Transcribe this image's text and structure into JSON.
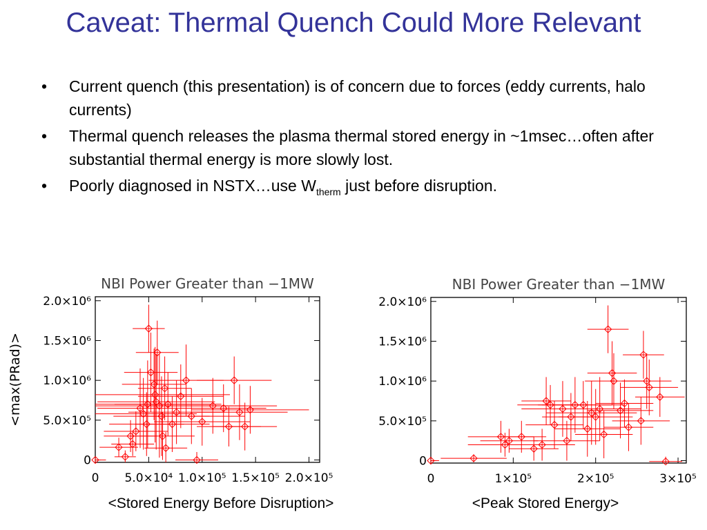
{
  "slide": {
    "title": "Caveat: Thermal Quench Could More Relevant",
    "bullets": [
      {
        "marker": "•",
        "text": "Current quench (this presentation) is of concern due to forces (eddy currents, halo currents)"
      },
      {
        "marker": "•",
        "text": "Thermal quench releases the plasma thermal stored energy in ~1msec…often after substantial thermal energy is more slowly lost."
      },
      {
        "marker": "•",
        "pre": "Poorly diagnosed in NSTX…use W",
        "sub": "therm",
        "post": " just before disruption."
      }
    ]
  },
  "colors": {
    "title": "#333399",
    "series": "#ff0000",
    "axis": "#000000"
  },
  "chart_data": [
    {
      "type": "scatter",
      "title": "NBI Power Greater than −1MW",
      "ylabel": "<max(PRad)>",
      "xlabel": "<Stored Energy Before Disruption>",
      "xlim": [
        0,
        210000
      ],
      "ylim": [
        -30000,
        2050000
      ],
      "xticks": [
        0,
        50000,
        100000,
        150000,
        200000
      ],
      "xtick_labels": [
        "0",
        "5.0×10⁴",
        "1.0×10⁵",
        "1.5×10⁵",
        "2.0×10⁵"
      ],
      "yticks": [
        0,
        500000,
        1000000,
        1500000,
        2000000
      ],
      "ytick_labels": [
        "0",
        "5.0×10⁵",
        "1.0×10⁶",
        "1.5×10⁶",
        "2.0×10⁶"
      ],
      "marker": "diamond",
      "points": [
        {
          "x": 0,
          "y": 0,
          "xerr": 10000,
          "yerr": 30000
        },
        {
          "x": 22000,
          "y": 160000,
          "xerr": 18000,
          "yerr": 120000
        },
        {
          "x": 28000,
          "y": 40000,
          "xerr": 10000,
          "yerr": 80000
        },
        {
          "x": 33000,
          "y": 300000,
          "xerr": 25000,
          "yerr": 200000
        },
        {
          "x": 35000,
          "y": 200000,
          "xerr": 20000,
          "yerr": 150000
        },
        {
          "x": 38000,
          "y": 360000,
          "xerr": 30000,
          "yerr": 250000
        },
        {
          "x": 42000,
          "y": 650000,
          "xerr": 40000,
          "yerr": 500000
        },
        {
          "x": 45000,
          "y": 580000,
          "xerr": 50000,
          "yerr": 450000
        },
        {
          "x": 48000,
          "y": 450000,
          "xerr": 35000,
          "yerr": 400000
        },
        {
          "x": 49000,
          "y": 700000,
          "xerr": 60000,
          "yerr": 550000
        },
        {
          "x": 50000,
          "y": 1650000,
          "xerr": 15000,
          "yerr": 300000
        },
        {
          "x": 52000,
          "y": 1100000,
          "xerr": 25000,
          "yerr": 500000
        },
        {
          "x": 55000,
          "y": 950000,
          "xerr": 30000,
          "yerr": 450000
        },
        {
          "x": 56000,
          "y": 820000,
          "xerr": 70000,
          "yerr": 600000
        },
        {
          "x": 57000,
          "y": 730000,
          "xerr": 55000,
          "yerr": 600000
        },
        {
          "x": 58000,
          "y": 1350000,
          "xerr": 20000,
          "yerr": 400000
        },
        {
          "x": 60000,
          "y": 680000,
          "xerr": 80000,
          "yerr": 650000
        },
        {
          "x": 62000,
          "y": 550000,
          "xerr": 45000,
          "yerr": 500000
        },
        {
          "x": 63000,
          "y": 300000,
          "xerr": 30000,
          "yerr": 300000
        },
        {
          "x": 65000,
          "y": 900000,
          "xerr": 25000,
          "yerr": 400000
        },
        {
          "x": 66000,
          "y": 150000,
          "xerr": 20000,
          "yerr": 200000
        },
        {
          "x": 68000,
          "y": 700000,
          "xerr": 50000,
          "yerr": 400000
        },
        {
          "x": 72000,
          "y": 450000,
          "xerr": 35000,
          "yerr": 350000
        },
        {
          "x": 76000,
          "y": 600000,
          "xerr": 45000,
          "yerr": 400000
        },
        {
          "x": 80000,
          "y": 800000,
          "xerr": 40000,
          "yerr": 400000
        },
        {
          "x": 85000,
          "y": 1000000,
          "xerr": 35000,
          "yerr": 450000
        },
        {
          "x": 90000,
          "y": 550000,
          "xerr": 50000,
          "yerr": 350000
        },
        {
          "x": 95000,
          "y": 0,
          "xerr": 20000,
          "yerr": 100000
        },
        {
          "x": 100000,
          "y": 480000,
          "xerr": 45000,
          "yerr": 300000
        },
        {
          "x": 110000,
          "y": 680000,
          "xerr": 60000,
          "yerr": 350000
        },
        {
          "x": 120000,
          "y": 650000,
          "xerr": 40000,
          "yerr": 300000
        },
        {
          "x": 125000,
          "y": 420000,
          "xerr": 30000,
          "yerr": 250000
        },
        {
          "x": 130000,
          "y": 1000000,
          "xerr": 35000,
          "yerr": 300000
        },
        {
          "x": 135000,
          "y": 600000,
          "xerr": 45000,
          "yerr": 350000
        },
        {
          "x": 140000,
          "y": 420000,
          "xerr": 30000,
          "yerr": 300000
        },
        {
          "x": 145000,
          "y": 630000,
          "xerr": 55000,
          "yerr": 300000
        }
      ]
    },
    {
      "type": "scatter",
      "title": "NBI Power Greater than −1MW",
      "ylabel": "",
      "xlabel": "<Peak Stored Energy>",
      "xlim": [
        0,
        310000
      ],
      "ylim": [
        -30000,
        2050000
      ],
      "xticks": [
        0,
        100000,
        200000,
        300000
      ],
      "xtick_labels": [
        "0",
        "1×10⁵",
        "2×10⁵",
        "3×10⁵"
      ],
      "yticks": [
        0,
        500000,
        1000000,
        1500000,
        2000000
      ],
      "ytick_labels": [
        "0",
        "5.0×10⁵",
        "1.0×10⁶",
        "1.5×10⁶",
        "2.0×10⁶"
      ],
      "marker": "diamond",
      "points": [
        {
          "x": 0,
          "y": 0,
          "xerr": 10000,
          "yerr": 30000
        },
        {
          "x": 52000,
          "y": 30000,
          "xerr": 40000,
          "yerr": 50000
        },
        {
          "x": 90000,
          "y": 200000,
          "xerr": 45000,
          "yerr": 150000
        },
        {
          "x": 85000,
          "y": 300000,
          "xerr": 40000,
          "yerr": 200000
        },
        {
          "x": 95000,
          "y": 250000,
          "xerr": 35000,
          "yerr": 150000
        },
        {
          "x": 110000,
          "y": 300000,
          "xerr": 30000,
          "yerr": 200000
        },
        {
          "x": 125000,
          "y": 150000,
          "xerr": 30000,
          "yerr": 150000
        },
        {
          "x": 135000,
          "y": 200000,
          "xerr": 40000,
          "yerr": 200000
        },
        {
          "x": 140000,
          "y": 750000,
          "xerr": 30000,
          "yerr": 300000
        },
        {
          "x": 145000,
          "y": 700000,
          "xerr": 40000,
          "yerr": 250000
        },
        {
          "x": 150000,
          "y": 450000,
          "xerr": 35000,
          "yerr": 300000
        },
        {
          "x": 160000,
          "y": 650000,
          "xerr": 50000,
          "yerr": 350000
        },
        {
          "x": 165000,
          "y": 250000,
          "xerr": 40000,
          "yerr": 250000
        },
        {
          "x": 170000,
          "y": 550000,
          "xerr": 35000,
          "yerr": 300000
        },
        {
          "x": 175000,
          "y": 700000,
          "xerr": 45000,
          "yerr": 350000
        },
        {
          "x": 185000,
          "y": 700000,
          "xerr": 50000,
          "yerr": 300000
        },
        {
          "x": 190000,
          "y": 400000,
          "xerr": 40000,
          "yerr": 350000
        },
        {
          "x": 195000,
          "y": 600000,
          "xerr": 55000,
          "yerr": 400000
        },
        {
          "x": 200000,
          "y": 550000,
          "xerr": 45000,
          "yerr": 350000
        },
        {
          "x": 205000,
          "y": 650000,
          "xerr": 50000,
          "yerr": 400000
        },
        {
          "x": 210000,
          "y": 330000,
          "xerr": 35000,
          "yerr": 300000
        },
        {
          "x": 215000,
          "y": 1650000,
          "xerr": 25000,
          "yerr": 300000
        },
        {
          "x": 220000,
          "y": 1100000,
          "xerr": 30000,
          "yerr": 400000
        },
        {
          "x": 222000,
          "y": 1000000,
          "xerr": 35000,
          "yerr": 350000
        },
        {
          "x": 230000,
          "y": 630000,
          "xerr": 40000,
          "yerr": 350000
        },
        {
          "x": 235000,
          "y": 720000,
          "xerr": 35000,
          "yerr": 300000
        },
        {
          "x": 240000,
          "y": 420000,
          "xerr": 30000,
          "yerr": 300000
        },
        {
          "x": 255000,
          "y": 500000,
          "xerr": 35000,
          "yerr": 300000
        },
        {
          "x": 258000,
          "y": 1330000,
          "xerr": 25000,
          "yerr": 300000
        },
        {
          "x": 262000,
          "y": 1000000,
          "xerr": 30000,
          "yerr": 350000
        },
        {
          "x": 265000,
          "y": 920000,
          "xerr": 35000,
          "yerr": 350000
        },
        {
          "x": 278000,
          "y": 800000,
          "xerr": 30000,
          "yerr": 250000
        },
        {
          "x": 285000,
          "y": -10000,
          "xerr": 20000,
          "yerr": 60000
        }
      ]
    }
  ]
}
